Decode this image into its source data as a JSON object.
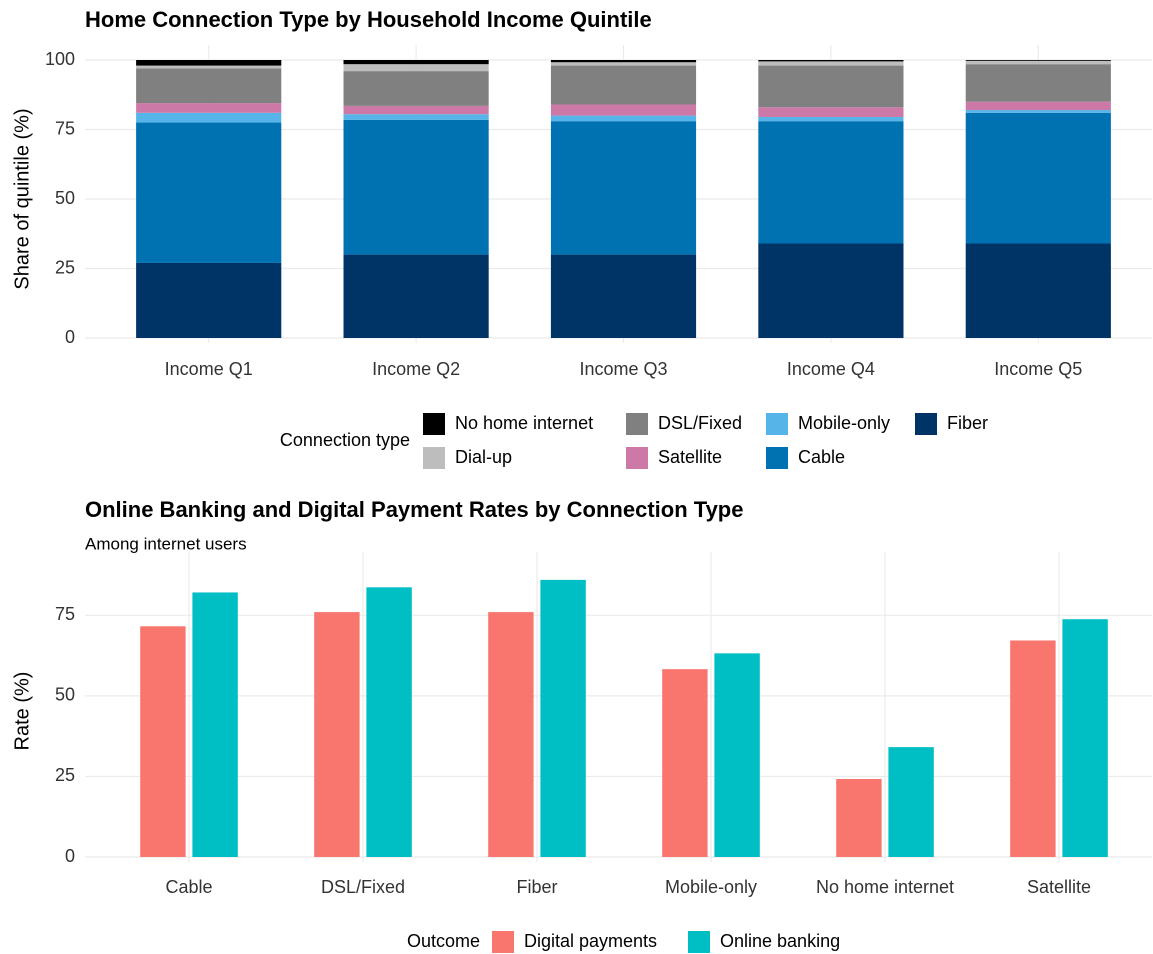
{
  "chart_data": [
    {
      "type": "bar",
      "stacked": true,
      "title": "Home Connection Type by Household Income Quintile",
      "y_label": "Share of quintile (%)",
      "legend_title": "Connection type",
      "categories": [
        "Income Q1",
        "Income Q2",
        "Income Q3",
        "Income Q4",
        "Income Q5"
      ],
      "series": [
        {
          "name": "No home internet",
          "color": "#000000",
          "values": [
            2,
            1.5,
            0.8,
            0.5,
            0.3
          ]
        },
        {
          "name": "Dial-up",
          "color": "#bdbdbd",
          "values": [
            1,
            2.5,
            1.2,
            1.5,
            1.2
          ]
        },
        {
          "name": "DSL/Fixed",
          "color": "#808080",
          "values": [
            12.5,
            12.5,
            14,
            15,
            13.5
          ]
        },
        {
          "name": "Satellite",
          "color": "#cc79a7",
          "values": [
            3.5,
            3,
            4,
            3.5,
            3
          ]
        },
        {
          "name": "Mobile-only",
          "color": "#56b4e9",
          "values": [
            3.5,
            2,
            2,
            1.5,
            1
          ]
        },
        {
          "name": "Cable",
          "color": "#0072b2",
          "values": [
            50.5,
            48.5,
            48,
            44,
            47
          ]
        },
        {
          "name": "Fiber",
          "color": "#003366",
          "values": [
            27,
            30,
            30,
            34,
            34
          ]
        }
      ],
      "ylim": [
        0,
        100
      ],
      "yticks": [
        0,
        25,
        50,
        75,
        100
      ],
      "grid": true
    },
    {
      "type": "bar",
      "stacked": false,
      "title": "Online Banking and Digital Payment Rates by Connection Type",
      "subtitle": "Among internet users",
      "y_label": "Rate (%)",
      "legend_title": "Outcome",
      "categories": [
        "Cable",
        "DSL/Fixed",
        "Fiber",
        "Mobile-only",
        "No home internet",
        "Satellite"
      ],
      "series": [
        {
          "name": "Digital payments",
          "color": "#f8766d",
          "values": [
            71.6,
            76,
            76,
            58.3,
            24.2,
            67.2
          ]
        },
        {
          "name": "Online banking",
          "color": "#00bfc4",
          "values": [
            82.1,
            83.7,
            86,
            63.2,
            34.1,
            73.8
          ]
        }
      ],
      "ylim": [
        0,
        90
      ],
      "yticks": [
        0,
        25,
        50,
        75
      ],
      "grid": true
    }
  ]
}
